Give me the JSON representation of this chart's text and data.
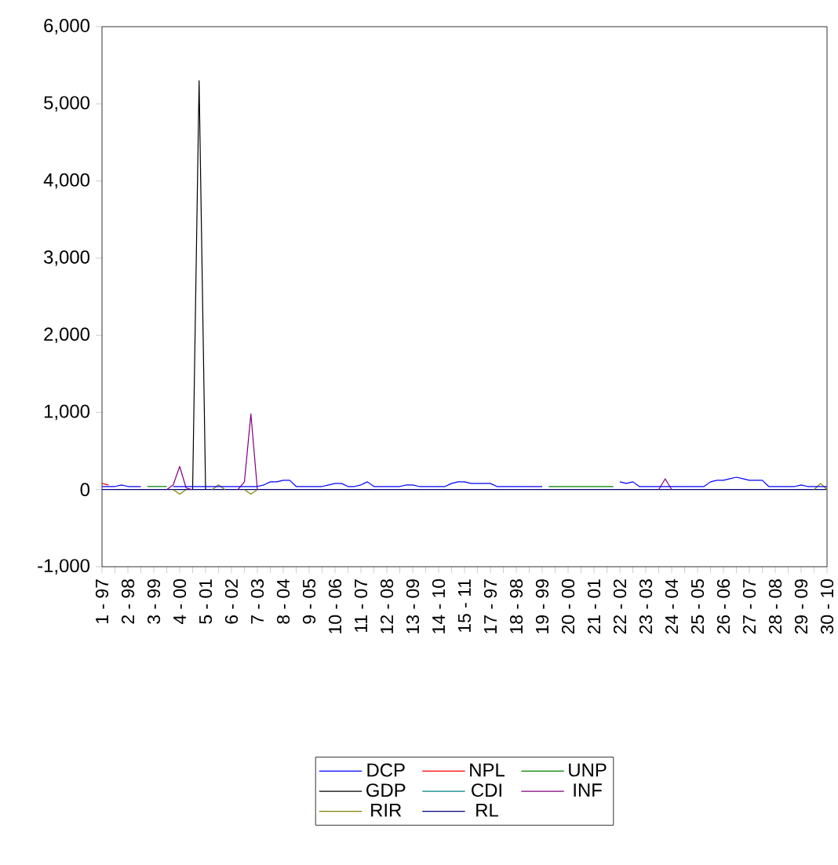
{
  "chart_data": {
    "type": "line",
    "ylim": [
      -1000,
      6000
    ],
    "yticks": [
      {
        "value": -1000,
        "label": "-1,000"
      },
      0,
      {
        "value": 1000,
        "label": "1,000"
      },
      {
        "value": 2000,
        "label": "2,000"
      },
      {
        "value": 3000,
        "label": "3,000"
      },
      {
        "value": 4000,
        "label": "4,000"
      },
      {
        "value": 5000,
        "label": "5,000"
      },
      {
        "value": 6000,
        "label": "6,000"
      }
    ],
    "categories": [
      "1 - 97",
      null,
      null,
      null,
      "2 - 98",
      null,
      null,
      null,
      "3 - 99",
      null,
      null,
      null,
      "4 - 00",
      null,
      null,
      null,
      "5 - 01",
      null,
      null,
      null,
      "6 - 02",
      null,
      null,
      null,
      "7 - 03",
      null,
      null,
      null,
      "8 - 04",
      null,
      null,
      null,
      "9 - 05",
      null,
      null,
      null,
      "10 - 06",
      null,
      null,
      null,
      "11 - 07",
      null,
      null,
      null,
      "12 - 08",
      null,
      null,
      null,
      "13 - 09",
      null,
      null,
      null,
      "14 - 10",
      null,
      null,
      null,
      "15 - 11",
      null,
      null,
      null,
      "17 - 97",
      null,
      null,
      null,
      "18 - 98",
      null,
      null,
      null,
      "19 - 99",
      null,
      null,
      null,
      "20 - 00",
      null,
      null,
      null,
      "21 - 01",
      null,
      null,
      null,
      "22 - 02",
      null,
      null,
      null,
      "23 - 03",
      null,
      null,
      null,
      "24 - 04",
      null,
      null,
      null,
      "25 - 05",
      null,
      null,
      null,
      "26 - 06",
      null,
      null,
      null,
      "27 - 07",
      null,
      null,
      null,
      "28 - 08",
      null,
      null,
      null,
      "29 - 09",
      null,
      null,
      null,
      "30 - 10"
    ],
    "legend": "bottom",
    "series": [
      {
        "name": "DCP",
        "color": "#0000ff",
        "values": [
          40,
          40,
          40,
          60,
          40,
          40,
          40,
          null,
          null,
          null,
          null,
          40,
          40,
          40,
          40,
          40,
          40,
          40,
          40,
          40,
          40,
          40,
          40,
          40,
          40,
          60,
          100,
          100,
          120,
          120,
          40,
          40,
          40,
          40,
          40,
          60,
          80,
          80,
          40,
          40,
          60,
          100,
          40,
          40,
          40,
          40,
          40,
          60,
          60,
          40,
          40,
          40,
          40,
          40,
          80,
          100,
          100,
          80,
          80,
          80,
          80,
          40,
          40,
          40,
          40,
          40,
          40,
          40,
          40,
          null,
          null,
          null,
          null,
          null,
          null,
          null,
          null,
          null,
          null,
          null,
          100,
          80,
          100,
          40,
          40,
          40,
          40,
          40,
          40,
          40,
          40,
          40,
          40,
          40,
          100,
          120,
          120,
          140,
          160,
          140,
          120,
          120,
          120,
          40,
          40,
          40,
          40,
          40,
          60,
          40,
          40,
          40,
          40
        ]
      },
      {
        "name": "NPL",
        "color": "#ff0000",
        "values": [
          80,
          60,
          null,
          null,
          null,
          null,
          null,
          null,
          null,
          null,
          null,
          null,
          null,
          null,
          null,
          null,
          null,
          null,
          null,
          null,
          null,
          null,
          null,
          null,
          null,
          null,
          null,
          null,
          null,
          null,
          null,
          null,
          null,
          null,
          null,
          null,
          null,
          null,
          null,
          null,
          null,
          null,
          null,
          null,
          null,
          null,
          null,
          null,
          null,
          null,
          null,
          null,
          null,
          null,
          null,
          null,
          null,
          null,
          null,
          null,
          null,
          null,
          null,
          null,
          null,
          null,
          null,
          null,
          null,
          null,
          null,
          null,
          null,
          null,
          null,
          null,
          null,
          null,
          null,
          null,
          null,
          null,
          null,
          null,
          null,
          null,
          null,
          null,
          null,
          null,
          null,
          null,
          null,
          null,
          null,
          null,
          null,
          null,
          null,
          null,
          null,
          null,
          null,
          null,
          null,
          null,
          null,
          null,
          null,
          null,
          null,
          null,
          null
        ]
      },
      {
        "name": "UNP",
        "color": "#008000",
        "values": [
          null,
          null,
          null,
          null,
          null,
          null,
          null,
          40,
          40,
          40,
          40,
          null,
          null,
          null,
          null,
          null,
          null,
          null,
          null,
          null,
          null,
          null,
          null,
          null,
          null,
          null,
          null,
          null,
          null,
          null,
          null,
          null,
          null,
          null,
          null,
          null,
          null,
          null,
          null,
          null,
          null,
          null,
          null,
          null,
          null,
          null,
          null,
          null,
          null,
          null,
          null,
          null,
          null,
          null,
          null,
          null,
          null,
          null,
          null,
          null,
          null,
          null,
          null,
          null,
          null,
          null,
          null,
          null,
          null,
          40,
          40,
          40,
          40,
          40,
          40,
          40,
          40,
          40,
          40,
          40,
          null,
          null,
          null,
          null,
          null,
          null,
          null,
          null,
          null,
          null,
          null,
          null,
          null,
          null,
          null,
          null,
          null,
          null,
          null,
          null,
          null,
          null,
          null,
          null,
          null,
          null,
          null,
          null,
          null,
          null,
          null,
          null,
          null
        ]
      },
      {
        "name": "GDP",
        "color": "#000000",
        "values": [
          null,
          null,
          null,
          null,
          null,
          null,
          null,
          null,
          null,
          null,
          null,
          null,
          null,
          null,
          0,
          5300,
          0,
          null,
          null,
          null,
          null,
          null,
          null,
          null,
          null,
          null,
          null,
          null,
          null,
          null,
          null,
          null,
          null,
          null,
          null,
          null,
          null,
          null,
          null,
          null,
          null,
          null,
          null,
          null,
          null,
          null,
          null,
          null,
          null,
          null,
          null,
          null,
          null,
          null,
          null,
          null,
          null,
          null,
          null,
          null,
          null,
          null,
          null,
          null,
          null,
          null,
          null,
          null,
          null,
          null,
          null,
          null,
          null,
          null,
          null,
          null,
          null,
          null,
          null,
          null,
          null,
          null,
          null,
          null,
          null,
          null,
          null,
          null,
          null,
          null,
          null,
          null,
          null,
          null,
          null,
          null,
          null,
          null,
          null,
          null,
          null,
          null,
          null,
          null,
          null,
          null,
          null,
          null,
          null,
          null,
          null,
          null,
          null
        ]
      },
      {
        "name": "CDI",
        "color": "#008080",
        "values": [
          null,
          null,
          null,
          null,
          null,
          null,
          null,
          null,
          null,
          null,
          null,
          null,
          null,
          null,
          null,
          null,
          null,
          null,
          null,
          null,
          null,
          null,
          null,
          null,
          null,
          null,
          null,
          null,
          null,
          null,
          null,
          null,
          null,
          null,
          null,
          null,
          null,
          null,
          null,
          null,
          null,
          null,
          null,
          null,
          null,
          null,
          null,
          null,
          null,
          null,
          null,
          null,
          null,
          null,
          null,
          null,
          null,
          null,
          null,
          null,
          null,
          null,
          null,
          null,
          null,
          null,
          null,
          null,
          null,
          null,
          null,
          null,
          null,
          null,
          null,
          null,
          null,
          null,
          null,
          null,
          null,
          null,
          null,
          null,
          null,
          null,
          null,
          null,
          null,
          null,
          null,
          null,
          null,
          null,
          null,
          null,
          null,
          null,
          null,
          null,
          null,
          null,
          null,
          null,
          null,
          null,
          null,
          null,
          null,
          null,
          null,
          null,
          null
        ]
      },
      {
        "name": "INF",
        "color": "#800080",
        "values": [
          null,
          null,
          null,
          null,
          null,
          null,
          null,
          null,
          null,
          null,
          0,
          60,
          300,
          20,
          0,
          null,
          null,
          null,
          null,
          null,
          null,
          0,
          100,
          980,
          0,
          null,
          null,
          null,
          null,
          null,
          null,
          null,
          null,
          null,
          null,
          null,
          null,
          null,
          null,
          null,
          null,
          null,
          null,
          null,
          null,
          null,
          null,
          null,
          null,
          null,
          null,
          null,
          null,
          null,
          null,
          null,
          null,
          null,
          null,
          null,
          null,
          null,
          null,
          null,
          null,
          null,
          null,
          null,
          null,
          null,
          null,
          null,
          null,
          null,
          null,
          null,
          null,
          null,
          null,
          null,
          null,
          null,
          null,
          null,
          null,
          null,
          0,
          140,
          0,
          null,
          null,
          null,
          null,
          null,
          null,
          null,
          null,
          null,
          null,
          null,
          null,
          null,
          null,
          null,
          null,
          null,
          null,
          null,
          null,
          null,
          null,
          null,
          null
        ]
      },
      {
        "name": "RIR",
        "color": "#808000",
        "values": [
          null,
          null,
          null,
          null,
          null,
          null,
          null,
          null,
          null,
          null,
          null,
          0,
          -60,
          0,
          null,
          null,
          null,
          0,
          60,
          0,
          null,
          null,
          0,
          -60,
          0,
          null,
          null,
          null,
          null,
          null,
          null,
          null,
          null,
          null,
          null,
          null,
          null,
          null,
          null,
          null,
          null,
          null,
          null,
          null,
          null,
          null,
          null,
          null,
          null,
          null,
          null,
          null,
          null,
          null,
          null,
          null,
          null,
          null,
          null,
          null,
          null,
          null,
          null,
          null,
          null,
          null,
          null,
          null,
          null,
          null,
          null,
          null,
          null,
          null,
          null,
          null,
          null,
          null,
          null,
          null,
          null,
          null,
          null,
          null,
          null,
          null,
          null,
          null,
          null,
          null,
          null,
          null,
          null,
          null,
          null,
          null,
          null,
          null,
          null,
          null,
          null,
          null,
          null,
          null,
          null,
          null,
          null,
          null,
          null,
          null,
          0,
          80,
          0
        ]
      },
      {
        "name": "RL",
        "color": "#000080",
        "values": [
          0,
          0,
          0,
          0,
          0,
          0,
          0,
          0,
          0,
          0,
          0,
          0,
          0,
          0,
          0,
          0,
          0,
          0,
          0,
          0,
          0,
          0,
          0,
          0,
          0,
          0,
          0,
          0,
          0,
          0,
          0,
          0,
          0,
          0,
          0,
          0,
          0,
          0,
          0,
          0,
          0,
          0,
          0,
          0,
          0,
          0,
          0,
          0,
          0,
          0,
          0,
          0,
          0,
          0,
          0,
          0,
          0,
          0,
          0,
          0,
          0,
          0,
          0,
          0,
          0,
          0,
          0,
          0,
          0,
          0,
          0,
          0,
          0,
          0,
          0,
          0,
          0,
          0,
          0,
          0,
          0,
          0,
          0,
          0,
          0,
          0,
          0,
          0,
          0,
          0,
          0,
          0,
          0,
          0,
          0,
          0,
          0,
          0,
          0,
          0,
          0,
          0,
          0,
          0,
          0,
          0,
          0,
          0,
          0,
          0,
          0,
          0,
          0
        ]
      }
    ]
  }
}
